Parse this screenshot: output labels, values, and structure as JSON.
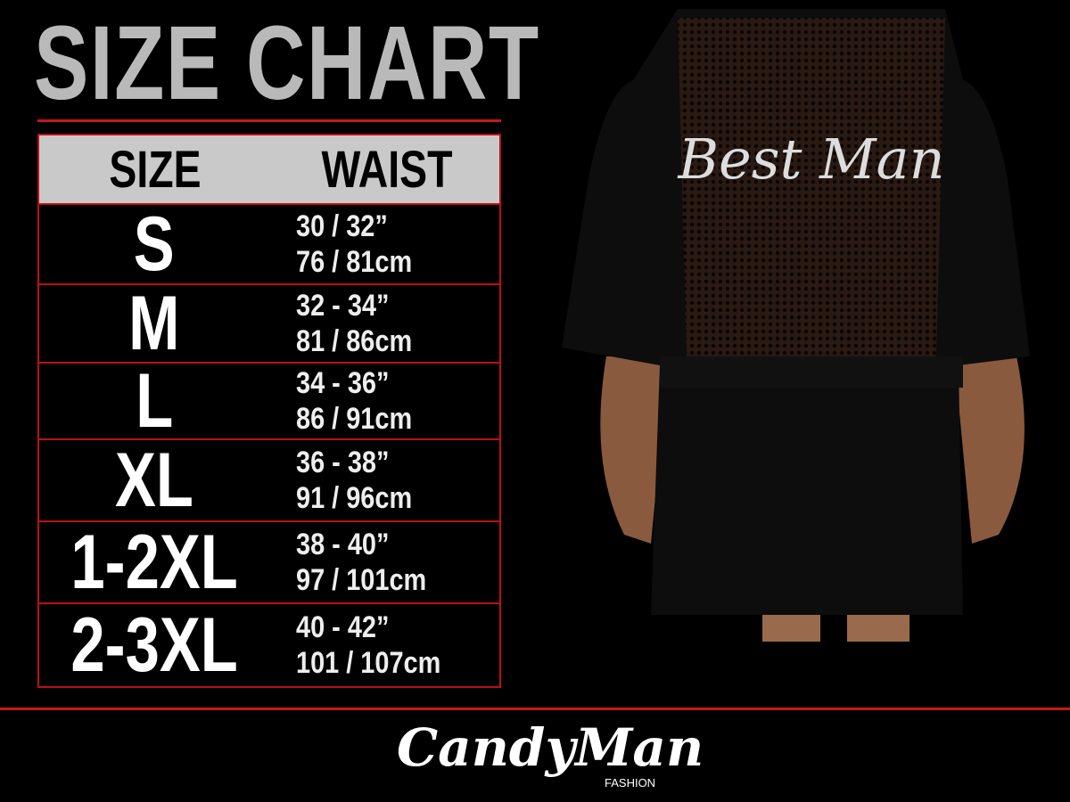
{
  "title": "SIZE CHART",
  "table": {
    "headers": [
      "SIZE",
      "WAIST"
    ],
    "rows": [
      {
        "size": "S",
        "inches": "30 / 32”",
        "cm": "76 / 81cm"
      },
      {
        "size": "M",
        "inches": "32 - 34”",
        "cm": "81 / 86cm"
      },
      {
        "size": "L",
        "inches": "34 - 36”",
        "cm": "86 / 91cm"
      },
      {
        "size": "XL",
        "inches": "36 - 38”",
        "cm": "91 / 96cm"
      },
      {
        "size": "1-2XL",
        "inches": "38 - 40”",
        "cm": "97 / 101cm"
      },
      {
        "size": "2-3XL",
        "inches": "40 - 42”",
        "cm": "101 / 107cm"
      }
    ]
  },
  "garment_text": "Best Man",
  "brand": {
    "name": "CandyMan",
    "sub": "FASHION"
  },
  "colors": {
    "accent": "#c81818",
    "header_bg": "#c9c9c9",
    "background": "#000000"
  }
}
